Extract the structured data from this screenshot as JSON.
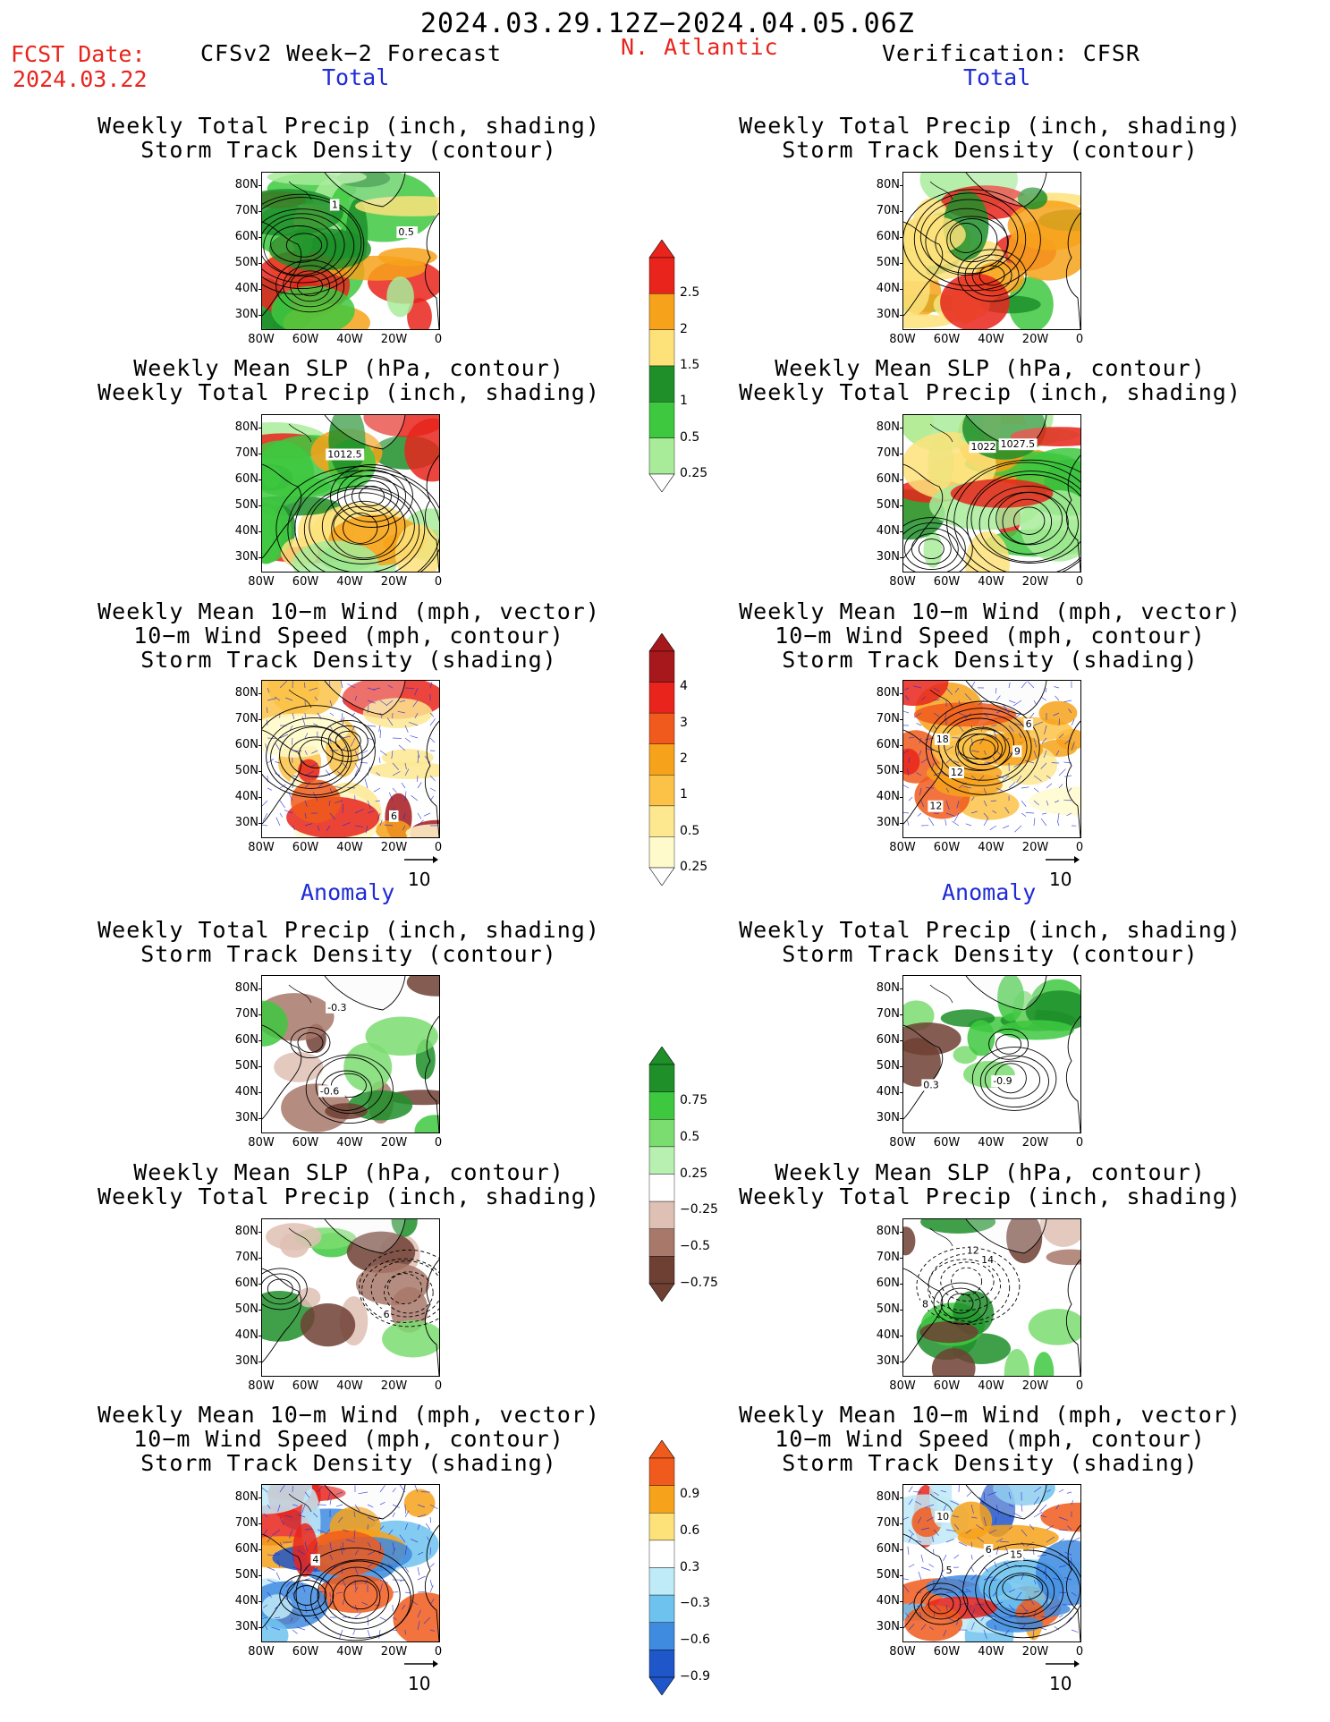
{
  "header": {
    "date_range": "2024.03.29.12Z−2024.04.05.06Z",
    "fcst_label": "FCST Date:",
    "fcst_date": "2024.03.22",
    "left_title": "CFSv2 Week−2 Forecast",
    "region": "N. Atlantic",
    "right_title": "Verification: CFSR",
    "total_label": "Total",
    "anomaly_label": "Anomaly"
  },
  "panel_titles": {
    "precip_track": "Weekly Total Precip (inch, shading)\nStorm Track Density (contour)",
    "slp_precip": "Weekly Mean SLP (hPa, contour)\nWeekly Total Precip (inch, shading)",
    "wind_track": "Weekly Mean 10−m Wind (mph, vector)\n10−m Wind Speed (mph, contour)\nStorm Track Density (shading)"
  },
  "vector_ref": "10",
  "chart_data": [
    {
      "type": "heatmap",
      "map": "precip_track",
      "section": "Total",
      "column": "CFSv2 Week-2 Forecast",
      "contour_labels": [
        "0.5",
        "1"
      ]
    },
    {
      "type": "heatmap",
      "map": "precip_track",
      "section": "Total",
      "column": "Verification: CFSR",
      "contour_labels": []
    },
    {
      "type": "heatmap",
      "map": "slp_precip",
      "section": "Total",
      "column": "CFSv2 Week-2 Forecast",
      "contour_labels": [
        "1012.5"
      ]
    },
    {
      "type": "heatmap",
      "map": "slp_precip",
      "section": "Total",
      "column": "Verification: CFSR",
      "contour_labels": [
        "1027.5",
        "1022"
      ]
    },
    {
      "type": "heatmap",
      "map": "wind_track",
      "section": "Total",
      "column": "CFSv2 Week-2 Forecast",
      "contour_labels": [
        "6"
      ]
    },
    {
      "type": "heatmap",
      "map": "wind_track",
      "section": "Total",
      "column": "Verification: CFSR",
      "contour_labels": [
        "12",
        "9",
        "18",
        "6",
        "12"
      ]
    },
    {
      "type": "heatmap",
      "map": "precip_track",
      "section": "Anomaly",
      "column": "CFSv2 Week-2 Forecast",
      "contour_labels": [
        "-0.6",
        "-0.3"
      ]
    },
    {
      "type": "heatmap",
      "map": "precip_track",
      "section": "Anomaly",
      "column": "Verification: CFSR",
      "contour_labels": [
        "-0.9",
        "0.3"
      ]
    },
    {
      "type": "heatmap",
      "map": "slp_precip",
      "section": "Anomaly",
      "column": "CFSv2 Week-2 Forecast",
      "contour_labels": [
        "6"
      ]
    },
    {
      "type": "heatmap",
      "map": "slp_precip",
      "section": "Anomaly",
      "column": "Verification: CFSR",
      "contour_labels": [
        "8",
        "12",
        "14"
      ]
    },
    {
      "type": "heatmap",
      "map": "wind_track",
      "section": "Anomaly",
      "column": "CFSv2 Week-2 Forecast",
      "contour_labels": [
        "4"
      ]
    },
    {
      "type": "heatmap",
      "map": "wind_track",
      "section": "Anomaly",
      "column": "Verification: CFSR",
      "contour_labels": [
        "6",
        "15",
        "10",
        "5"
      ]
    }
  ],
  "axes": {
    "lat_ticks": [
      "80N",
      "70N",
      "60N",
      "50N",
      "40N",
      "30N"
    ],
    "lon_ticks": [
      "80W",
      "60W",
      "40W",
      "20W",
      "0"
    ]
  },
  "colorbars": [
    {
      "name": "total-precip",
      "labels": [
        "2.5",
        "2",
        "1.5",
        "1",
        "0.5",
        "0.25"
      ],
      "colors": [
        "#e8241c",
        "#f7a21b",
        "#fde27a",
        "#1f8f2a",
        "#3ec83f",
        "#a8ec9a"
      ]
    },
    {
      "name": "total-track",
      "labels": [
        "4",
        "3",
        "2",
        "1",
        "0.5",
        "0.25"
      ],
      "colors": [
        "#a6181c",
        "#e8241c",
        "#f05a1c",
        "#f7a21b",
        "#fbc247",
        "#fde890",
        "#fffacc"
      ]
    },
    {
      "name": "anom-precip",
      "labels": [
        "0.75",
        "0.5",
        "0.25",
        "−0.25",
        "−0.5",
        "−0.75"
      ],
      "colors": [
        "#1f8f2a",
        "#3ec83f",
        "#7bdc70",
        "#b7f0b0",
        "#ffffff",
        "#dfc0b4",
        "#a8786a",
        "#6e4034"
      ]
    },
    {
      "name": "anom-track",
      "labels": [
        "0.9",
        "0.6",
        "0.3",
        "−0.3",
        "−0.6",
        "−0.9"
      ],
      "colors": [
        "#f05a1c",
        "#f7a21b",
        "#fde27a",
        "#ffffff",
        "#bfeaf7",
        "#6ec2ee",
        "#3f8be0",
        "#1f56c9"
      ]
    }
  ]
}
